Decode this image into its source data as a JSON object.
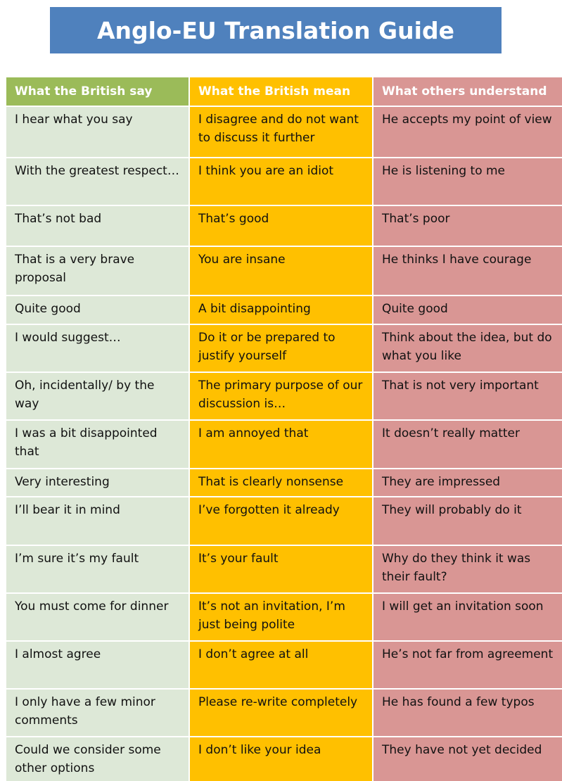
{
  "title": "Anglo-EU Translation Guide",
  "colors": {
    "banner": "#4f81bd",
    "header_col1": "#9bbb59",
    "header_col2": "#ffc000",
    "header_col3": "#d99694",
    "col1": "#dde8d7",
    "col2": "#ffc000",
    "col3": "#d99694"
  },
  "headers": [
    "What the British say",
    "What the British mean",
    "What others understand"
  ],
  "rows": [
    [
      "I hear what you say",
      "I disagree and do not want to discuss it further",
      "He accepts my point of view"
    ],
    [
      "With the greatest respect…",
      "I think you are an idiot",
      "He is listening to me"
    ],
    [
      "That’s not bad",
      "That’s good",
      "That’s poor"
    ],
    [
      "That is a very brave proposal",
      "You are insane",
      "He thinks I have courage"
    ],
    [
      "Quite good",
      "A bit disappointing",
      "Quite good"
    ],
    [
      "I would suggest…",
      "Do it or be prepared to justify yourself",
      "Think about the idea, but do what you like"
    ],
    [
      "Oh, incidentally/ by the way",
      "The primary purpose of our discussion is…",
      "That is not very important"
    ],
    [
      "I was a bit disappointed that",
      "I am annoyed that",
      "It doesn’t really matter"
    ],
    [
      "Very interesting",
      "That is clearly nonsense",
      "They are impressed"
    ],
    [
      "I’ll bear it in mind",
      "I’ve forgotten it already",
      "They will probably do it"
    ],
    [
      "I’m sure it’s my fault",
      "It’s your fault",
      "Why do they think it was their fault?"
    ],
    [
      "You must come for dinner",
      "It’s not an invitation, I’m just being polite",
      "I will get an invitation soon"
    ],
    [
      "I almost agree",
      "I don’t agree at all",
      "He’s not far from agreement"
    ],
    [
      "I only have a few minor comments",
      "Please re-write completely",
      "He has found a few typos"
    ],
    [
      "Could we consider some other options",
      "I don’t like your idea",
      "They have not yet decided"
    ]
  ]
}
